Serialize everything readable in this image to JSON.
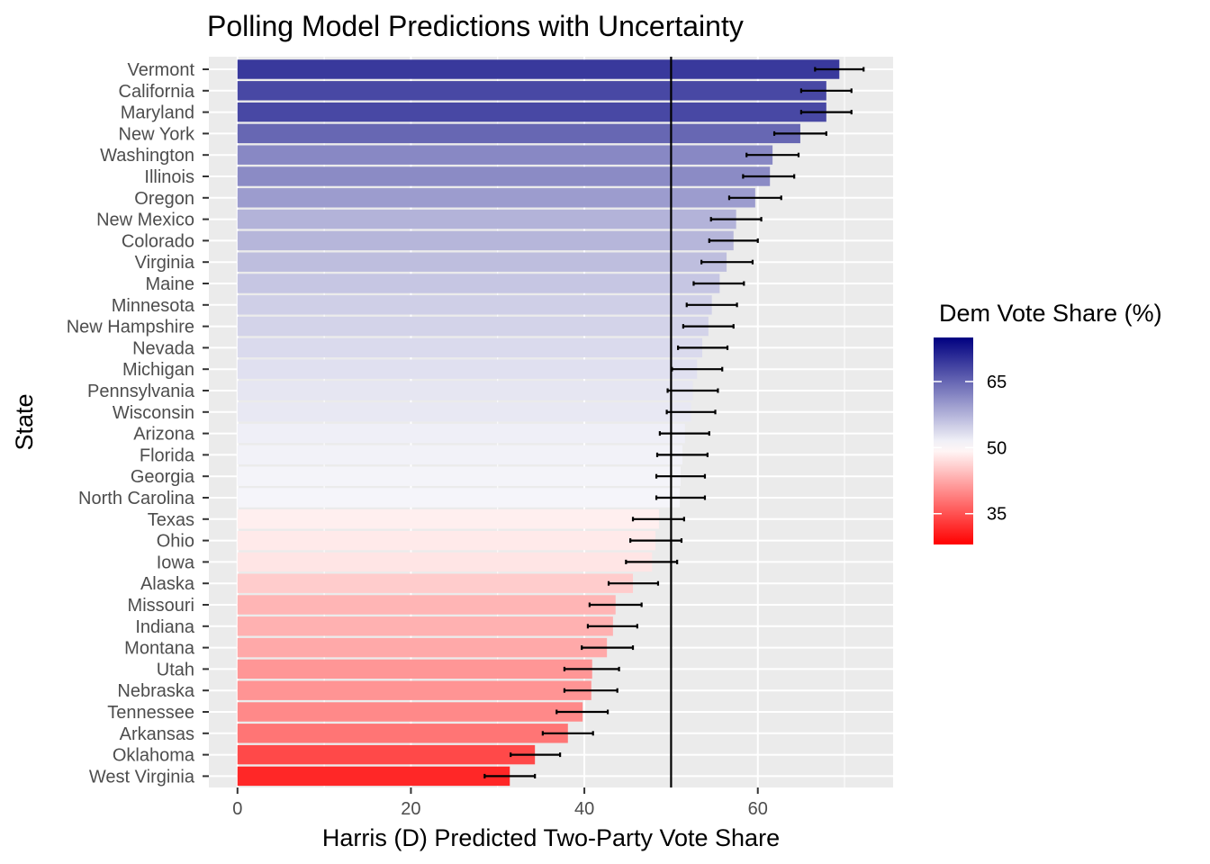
{
  "chart_data": {
    "type": "bar",
    "orientation": "horizontal",
    "title": "Polling Model Predictions with Uncertainty",
    "xlabel": "Harris (D) Predicted Two-Party Vote Share",
    "ylabel": "State",
    "xlim": [
      -3.3,
      75.6
    ],
    "x_ticks": [
      0,
      20,
      40,
      60
    ],
    "reference_line": 50,
    "grid": true,
    "legend_position": "right",
    "legend": {
      "title": "Dem Vote Share (%)",
      "ticks": [
        35,
        50,
        65
      ],
      "range": [
        28,
        75
      ],
      "midpoint": 50,
      "low_color": "#ff0000",
      "mid_color": "#ffffff",
      "high_color": "#000080"
    },
    "colors": {
      "panel": "#ebebeb",
      "gridline": "#ffffff",
      "error_bar": "#000000",
      "reference_line": "#000000"
    },
    "categories": [
      "Vermont",
      "California",
      "Maryland",
      "New York",
      "Washington",
      "Illinois",
      "Oregon",
      "New Mexico",
      "Colorado",
      "Virginia",
      "Maine",
      "Minnesota",
      "New Hampshire",
      "Nevada",
      "Michigan",
      "Pennsylvania",
      "Wisconsin",
      "Arizona",
      "Florida",
      "Georgia",
      "North Carolina",
      "Texas",
      "Ohio",
      "Iowa",
      "Alaska",
      "Missouri",
      "Indiana",
      "Montana",
      "Utah",
      "Nebraska",
      "Tennessee",
      "Arkansas",
      "Oklahoma",
      "West Virginia"
    ],
    "values": [
      69.4,
      67.9,
      67.9,
      64.9,
      61.7,
      61.4,
      59.7,
      57.5,
      57.2,
      56.4,
      55.6,
      54.7,
      54.3,
      53.6,
      53.0,
      52.5,
      52.3,
      51.6,
      51.3,
      51.1,
      51.0,
      48.6,
      48.2,
      47.8,
      45.6,
      43.6,
      43.3,
      42.6,
      40.9,
      40.8,
      39.8,
      38.1,
      34.3,
      31.4
    ],
    "lower": [
      66.6,
      65.0,
      65.0,
      61.9,
      58.7,
      58.3,
      56.7,
      54.6,
      54.4,
      53.5,
      52.6,
      51.8,
      51.4,
      50.8,
      50.1,
      49.6,
      49.5,
      48.7,
      48.4,
      48.3,
      48.3,
      45.6,
      45.3,
      44.8,
      42.8,
      40.6,
      40.4,
      39.7,
      37.7,
      37.7,
      36.8,
      35.2,
      31.5,
      28.5
    ],
    "upper": [
      72.2,
      70.8,
      70.8,
      67.9,
      64.7,
      64.2,
      62.7,
      60.4,
      60.0,
      59.4,
      58.4,
      57.6,
      57.2,
      56.5,
      55.9,
      55.4,
      55.1,
      54.4,
      54.2,
      53.9,
      53.9,
      51.5,
      51.2,
      50.7,
      48.5,
      46.6,
      46.1,
      45.6,
      44.0,
      43.8,
      42.7,
      41.0,
      37.2,
      34.3
    ]
  }
}
